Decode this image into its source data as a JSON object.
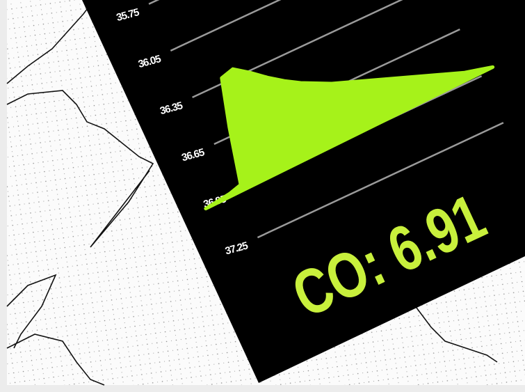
{
  "chart_data": {
    "type": "area",
    "color": "#a6f21a",
    "ylim": [
      37.25,
      35.75
    ],
    "yticks": [
      35.75,
      36.05,
      36.35,
      36.65,
      36.95,
      37.25
    ],
    "grid": true,
    "values": [
      36.97,
      36.96,
      36.95,
      36.93,
      36.6,
      36.32,
      36.3,
      36.36,
      36.43,
      36.49,
      36.54,
      36.58,
      36.62,
      36.65,
      36.68,
      36.71,
      36.74,
      36.77,
      36.8,
      36.83,
      36.86,
      36.89,
      36.91,
      36.93
    ],
    "annotation": "CO: 6.91",
    "annotation_color": "#c8f03c"
  }
}
